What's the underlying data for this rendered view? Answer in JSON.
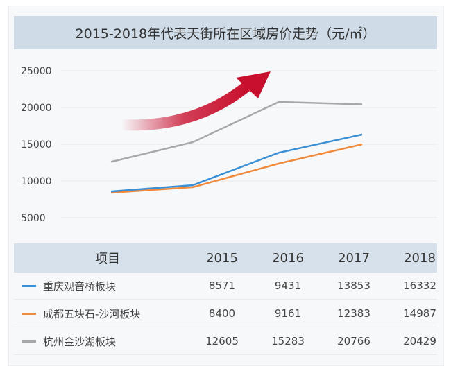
{
  "chart_data": {
    "type": "line",
    "title": "2015-2018年代表天街所在区域房价走势（元/㎡）",
    "categories": [
      "2015",
      "2016",
      "2017",
      "2018"
    ],
    "yticks": [
      5000,
      10000,
      15000,
      20000,
      25000
    ],
    "ylim": [
      0,
      25000
    ],
    "grid": true,
    "header_label": "项目",
    "series": [
      {
        "name": "重庆观音桥板块",
        "color": "#3a8fd4",
        "values": [
          8571,
          9431,
          13853,
          16332
        ]
      },
      {
        "name": "成都五块石-沙河板块",
        "color": "#f08a3c",
        "values": [
          8400,
          9161,
          12383,
          14987
        ]
      },
      {
        "name": "杭州金沙湖板块",
        "color": "#a8a8a8",
        "values": [
          12605,
          15283,
          20766,
          20429
        ]
      }
    ],
    "annotation": "red-upward-arrow",
    "arrow_color": "#c8102e"
  }
}
